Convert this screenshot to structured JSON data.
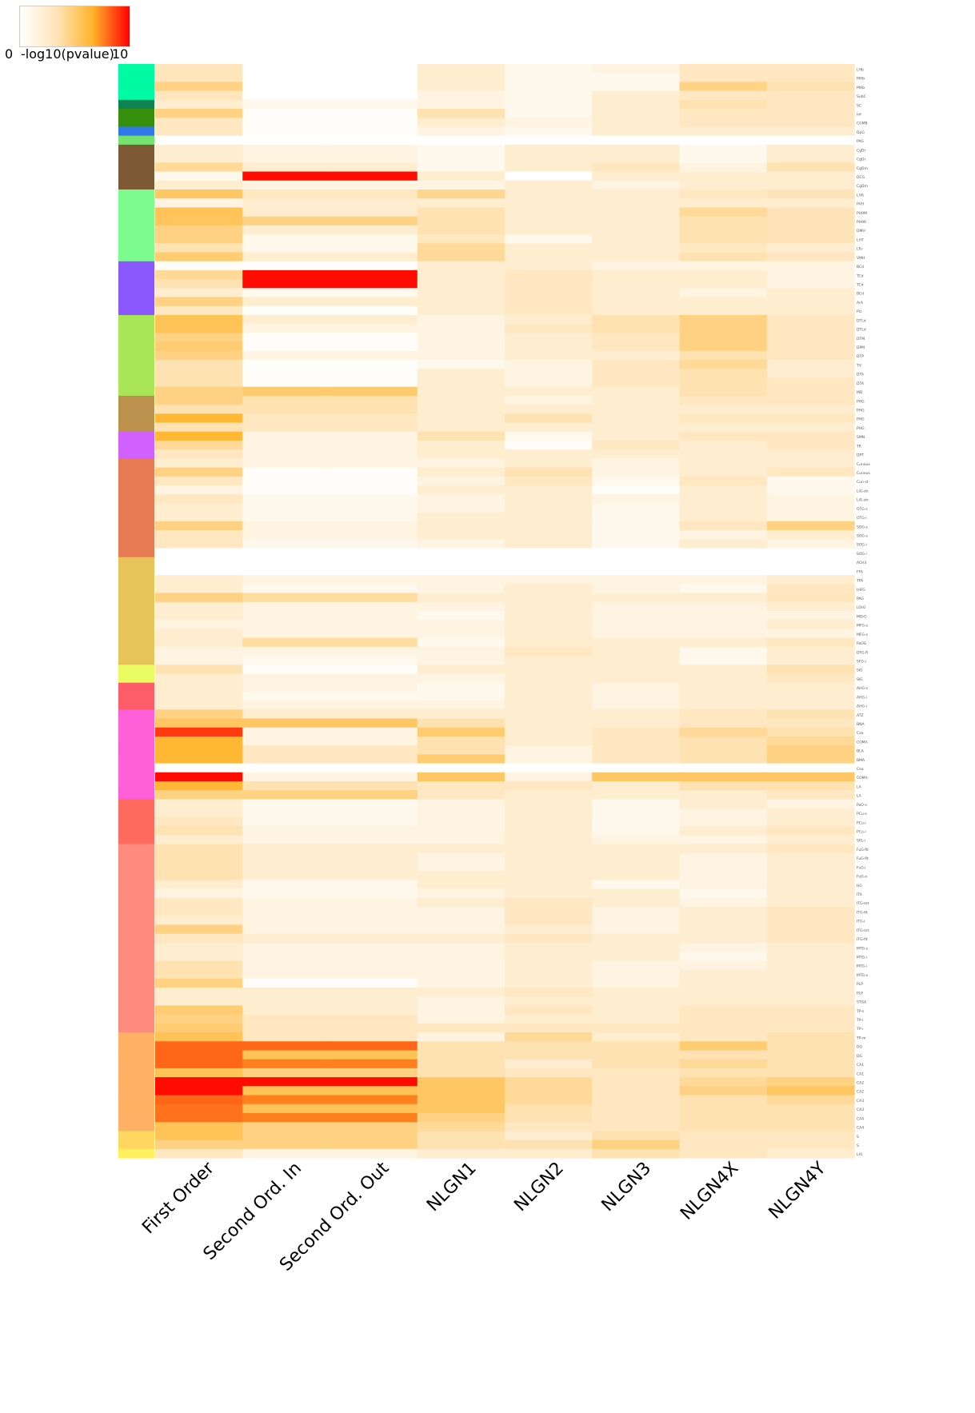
{
  "legend": {
    "min_label": "0",
    "title": "-log10(pvalue)",
    "max_label": "10",
    "colors": [
      "#ffffff",
      "#ffe4b8",
      "#ffb329",
      "#ff0000"
    ]
  },
  "chart_data": {
    "type": "heatmap",
    "columns": [
      "First Order",
      "Second Ord. In",
      "Second Ord. Out",
      "NLGN1",
      "NLGN2",
      "NLGN3",
      "NLGN4X",
      "NLGN4Y"
    ],
    "value_range": [
      0,
      10
    ],
    "group_colors": [
      "#00fba4",
      "#0f8251",
      "#368f0d",
      "#3278ea",
      "#75e26f",
      "#7d5936",
      "#7dfc8e",
      "#8a58fc",
      "#a8e658",
      "#bc914d",
      "#d160fc",
      "#e77a53",
      "#e7c459",
      "#e8fc62",
      "#fd5d69",
      "#ff5fd9",
      "#ff6a5f",
      "#ff8a7e",
      "#ffb165",
      "#ffd760",
      "#fff05c"
    ],
    "row_groups": [
      0,
      0,
      0,
      0,
      1,
      2,
      2,
      3,
      4,
      5,
      5,
      5,
      5,
      5,
      6,
      6,
      6,
      6,
      6,
      6,
      6,
      6,
      7,
      7,
      7,
      7,
      7,
      7,
      8,
      8,
      8,
      8,
      8,
      8,
      8,
      8,
      8,
      9,
      9,
      9,
      9,
      10,
      10,
      10,
      11,
      11,
      11,
      11,
      11,
      11,
      11,
      11,
      11,
      11,
      11,
      12,
      12,
      12,
      12,
      12,
      12,
      12,
      12,
      12,
      12,
      12,
      12,
      13,
      13,
      14,
      14,
      14,
      15,
      15,
      15,
      15,
      15,
      15,
      15,
      15,
      15,
      15,
      16,
      16,
      16,
      16,
      16,
      17,
      17,
      17,
      17,
      17,
      17,
      17,
      17,
      17,
      17,
      17,
      17,
      17,
      17,
      17,
      17,
      17,
      17,
      17,
      17,
      17,
      18,
      18,
      18,
      18,
      18,
      18,
      18,
      18,
      18,
      18,
      18,
      19,
      19,
      20
    ],
    "row_labels": [
      "LHb",
      "MHb",
      "MHb",
      "SubC",
      "SC",
      "Inf",
      "CGMB",
      "DpG",
      "PAG",
      "CgDr",
      "CgDr",
      "CgDm",
      "DCG",
      "CgDm",
      "LHA",
      "PVH",
      "PH9M",
      "PH9R",
      "DMH",
      "LHT",
      "LTu",
      "VMH",
      "BCd",
      "TCd",
      "TCd",
      "BCd",
      "ArA",
      "PU",
      "DTLd",
      "DTLd",
      "DTM",
      "DPM",
      "DTP",
      "TV",
      "DTA",
      "DTA",
      "MD",
      "PHG",
      "PHG",
      "PHG",
      "PHG",
      "SMN",
      "TR",
      "DPT",
      "Cuneus",
      "Cuneus",
      "Cun-st",
      "LiG-str",
      "LiG-str",
      "OTG-s",
      "OTG-i",
      "SOG-s",
      "SOG-s",
      "SOG-i",
      "SOG-i",
      "ACH3",
      "FFA",
      "TPA",
      "IHFG",
      "PAG",
      "LOrG",
      "MOrG",
      "MFG-s",
      "MFG-s",
      "PaOG",
      "DFG-R",
      "SFG-i",
      "SIG",
      "SIG",
      "AHG-s",
      "AHG-i",
      "AHG-i",
      "ATZ",
      "BNA",
      "Cxa",
      "COMA",
      "BLA",
      "BMA",
      "Cea",
      "COMA",
      "LA",
      "LA",
      "PaO-s",
      "PCu-s",
      "PCu-i",
      "PCu-i",
      "SPL-i",
      "FuG-fit",
      "FuG-fit",
      "FuG-i",
      "FuG-o",
      "HG",
      "ITA",
      "ITG-mt",
      "ITG-fit",
      "ITG-i",
      "ITG-mt",
      "ITG-fit",
      "MTG-s",
      "MTG-i",
      "MTG-i",
      "MTG-s",
      "PLP",
      "PLP",
      "STGA",
      "TP-s",
      "TP-i",
      "TP-i",
      "TP-m",
      "DG",
      "DG",
      "CA1",
      "CA1",
      "CA2",
      "CA2",
      "CA3",
      "CA3",
      "CA4",
      "CA4",
      "S",
      "S",
      "LAI"
    ],
    "values": [
      [
        3.2,
        null,
        null,
        2.2,
        0.9,
        1.4,
        2.9,
        2.9
      ],
      [
        3.2,
        null,
        null,
        2.2,
        0.9,
        0.9,
        2.9,
        2.9
      ],
      [
        4.6,
        null,
        null,
        2.2,
        0.9,
        0.9,
        4.5,
        3.5
      ],
      [
        3.2,
        null,
        null,
        1.4,
        0.9,
        2.2,
        2.9,
        2.9
      ],
      [
        2.2,
        0.9,
        0.9,
        1.4,
        0.9,
        2.2,
        3.5,
        2.9
      ],
      [
        4.6,
        0.3,
        0.3,
        3.5,
        0.9,
        2.2,
        2.9,
        2.9
      ],
      [
        2.9,
        0.3,
        0.3,
        2.2,
        1.4,
        2.2,
        2.9,
        2.9
      ],
      [
        2.9,
        0.3,
        0.3,
        1.4,
        0.9,
        2.2,
        2.2,
        2.2
      ],
      [
        0,
        0,
        0,
        0,
        0,
        0,
        0,
        0
      ],
      [
        2.2,
        1.4,
        1.4,
        0.9,
        2.2,
        2.2,
        0.9,
        2.2
      ],
      [
        2.2,
        1.4,
        1.4,
        0.9,
        2.2,
        2.2,
        0.9,
        2.2
      ],
      [
        4.1,
        2.2,
        2.2,
        0.9,
        2.2,
        2.9,
        1.4,
        3.5
      ],
      [
        0.9,
        9.8,
        9.8,
        2.2,
        0,
        2.2,
        2.2,
        2.2
      ],
      [
        2.2,
        1.4,
        1.4,
        1.4,
        2.2,
        1.4,
        2.2,
        2.2
      ],
      [
        5.3,
        2.9,
        2.9,
        4.3,
        2.2,
        2.2,
        2.9,
        3.3
      ],
      [
        1.4,
        2.2,
        2.2,
        2.2,
        2.2,
        2.2,
        2.2,
        2.2
      ],
      [
        5.6,
        2.2,
        2.2,
        3.5,
        2.2,
        2.2,
        4.1,
        3.3
      ],
      [
        5.5,
        4.6,
        4.6,
        3.5,
        2.2,
        2.2,
        3.5,
        3.3
      ],
      [
        4.6,
        2.2,
        2.2,
        3.5,
        2.2,
        2.2,
        3.5,
        3.3
      ],
      [
        4.6,
        0.9,
        0.9,
        2.9,
        0.9,
        2.2,
        3.5,
        3.3
      ],
      [
        3.5,
        0.9,
        0.9,
        4.1,
        2.2,
        2.2,
        2.9,
        2.2
      ],
      [
        5.0,
        2.2,
        2.2,
        4.1,
        2.2,
        2.2,
        3.5,
        2.9
      ],
      [
        0.3,
        0.3,
        0.3,
        2.2,
        2.2,
        1.4,
        1.4,
        1.4
      ],
      [
        4.1,
        9.8,
        9.8,
        2.2,
        2.9,
        2.2,
        2.2,
        1.4
      ],
      [
        3.5,
        9.8,
        9.8,
        2.2,
        2.9,
        2.2,
        2.2,
        1.4
      ],
      [
        2.2,
        0.9,
        0.9,
        2.2,
        2.9,
        2.2,
        1.4,
        2.2
      ],
      [
        4.6,
        2.2,
        2.2,
        2.2,
        2.9,
        2.2,
        2.2,
        2.2
      ],
      [
        2.9,
        0.3,
        0.3,
        2.2,
        2.9,
        2.2,
        2.2,
        2.2
      ],
      [
        5.6,
        2.2,
        2.2,
        1.4,
        2.2,
        3.5,
        4.6,
        2.9
      ],
      [
        5.6,
        1.4,
        1.4,
        1.4,
        2.9,
        3.5,
        4.6,
        2.9
      ],
      [
        4.6,
        0.3,
        0.3,
        1.4,
        2.2,
        2.9,
        4.6,
        2.9
      ],
      [
        5.0,
        0.3,
        0.3,
        1.4,
        2.2,
        2.9,
        4.6,
        2.9
      ],
      [
        4.6,
        1.4,
        1.4,
        1.4,
        2.2,
        2.2,
        3.5,
        2.9
      ],
      [
        3.5,
        0.3,
        0.3,
        0.9,
        1.4,
        2.9,
        4.1,
        2.2
      ],
      [
        3.5,
        0.3,
        0.3,
        2.2,
        1.4,
        2.9,
        3.5,
        2.2
      ],
      [
        3.5,
        0.3,
        0.3,
        2.2,
        1.4,
        2.9,
        3.5,
        2.9
      ],
      [
        4.6,
        5.1,
        5.1,
        2.2,
        2.2,
        2.2,
        3.5,
        2.9
      ],
      [
        4.6,
        3.5,
        3.5,
        2.2,
        1.4,
        2.2,
        2.9,
        2.9
      ],
      [
        3.5,
        3.5,
        3.5,
        2.2,
        2.2,
        2.2,
        2.2,
        2.2
      ],
      [
        6.4,
        2.9,
        2.9,
        2.2,
        3.5,
        2.2,
        2.9,
        2.9
      ],
      [
        3.5,
        2.9,
        2.9,
        2.2,
        2.2,
        2.2,
        2.2,
        2.2
      ],
      [
        6.4,
        1.4,
        1.4,
        3.5,
        0.9,
        2.2,
        2.9,
        2.9
      ],
      [
        4.1,
        1.4,
        1.4,
        2.2,
        0.3,
        2.9,
        2.2,
        2.9
      ],
      [
        2.9,
        1.4,
        1.4,
        2.2,
        2.2,
        2.2,
        2.2,
        2.2
      ],
      [
        2.2,
        1.4,
        1.4,
        1.4,
        2.2,
        1.4,
        2.2,
        2.2
      ],
      [
        4.6,
        0.3,
        0.3,
        2.2,
        3.5,
        1.4,
        2.2,
        2.9
      ],
      [
        2.9,
        0.3,
        0.3,
        1.4,
        2.9,
        0.9,
        2.9,
        0.9
      ],
      [
        1.4,
        0.3,
        0.3,
        2.2,
        2.2,
        0.3,
        2.2,
        0.9
      ],
      [
        2.9,
        0.9,
        0.9,
        1.4,
        2.2,
        1.4,
        2.2,
        1.4
      ],
      [
        2.2,
        0.9,
        0.9,
        1.4,
        2.2,
        0.9,
        2.2,
        1.4
      ],
      [
        2.2,
        0.9,
        0.9,
        2.2,
        2.2,
        0.9,
        2.2,
        1.4
      ],
      [
        4.6,
        1.4,
        1.4,
        2.2,
        2.2,
        0.9,
        2.9,
        4.6
      ],
      [
        2.9,
        1.4,
        1.4,
        2.2,
        2.2,
        0.9,
        1.4,
        2.2
      ],
      [
        2.9,
        0.9,
        0.9,
        1.4,
        2.2,
        0.9,
        2.2,
        1.4
      ],
      [
        0,
        0,
        0,
        0,
        0,
        0,
        0,
        0
      ],
      [
        0,
        0,
        0,
        0,
        0,
        0,
        0,
        0
      ],
      [
        0,
        0,
        0,
        0,
        0,
        0,
        0,
        0
      ],
      [
        2.2,
        1.4,
        1.4,
        1.4,
        1.4,
        1.4,
        1.4,
        2.2
      ],
      [
        2.2,
        0.9,
        0.9,
        1.4,
        2.2,
        1.4,
        0.9,
        2.9
      ],
      [
        4.6,
        3.9,
        3.9,
        2.2,
        2.2,
        2.2,
        2.2,
        3.2
      ],
      [
        2.2,
        1.4,
        1.4,
        1.4,
        2.2,
        1.4,
        1.4,
        2.2
      ],
      [
        2.2,
        1.4,
        1.4,
        0.9,
        2.2,
        1.4,
        1.4,
        1.4
      ],
      [
        1.4,
        1.4,
        1.4,
        1.4,
        2.2,
        1.4,
        1.4,
        2.2
      ],
      [
        2.2,
        1.4,
        1.4,
        1.4,
        2.2,
        1.4,
        1.4,
        1.4
      ],
      [
        2.2,
        3.9,
        3.9,
        0.9,
        2.2,
        2.2,
        2.2,
        2.9
      ],
      [
        1.4,
        1.4,
        1.4,
        1.4,
        2.9,
        2.2,
        0.9,
        2.2
      ],
      [
        1.4,
        0.9,
        0.9,
        1.4,
        2.2,
        2.2,
        0.9,
        2.2
      ],
      [
        3.5,
        0.3,
        0.3,
        2.2,
        2.2,
        2.2,
        2.2,
        3.5
      ],
      [
        2.2,
        1.4,
        1.4,
        1.4,
        2.2,
        2.2,
        2.2,
        2.9
      ],
      [
        2.2,
        1.4,
        1.4,
        0.9,
        2.2,
        1.4,
        2.2,
        2.2
      ],
      [
        2.2,
        0.9,
        0.9,
        0.9,
        2.2,
        1.4,
        2.2,
        2.2
      ],
      [
        2.2,
        1.4,
        1.4,
        1.4,
        2.2,
        1.4,
        2.2,
        2.2
      ],
      [
        4.6,
        2.2,
        2.2,
        2.2,
        2.2,
        2.2,
        2.9,
        3.5
      ],
      [
        5.3,
        5.3,
        5.3,
        3.5,
        2.2,
        2.2,
        2.9,
        2.9
      ],
      [
        8.9,
        1.4,
        1.4,
        5.0,
        2.2,
        2.9,
        4.1,
        3.5
      ],
      [
        6.4,
        1.4,
        1.4,
        3.5,
        2.2,
        2.9,
        3.5,
        4.1
      ],
      [
        6.4,
        2.9,
        2.9,
        3.5,
        1.4,
        2.9,
        3.5,
        4.6
      ],
      [
        6.4,
        2.9,
        2.9,
        5.0,
        1.4,
        2.9,
        3.5,
        4.6
      ],
      [
        0,
        0,
        0,
        0,
        0,
        0,
        0,
        0
      ],
      [
        9.8,
        1.4,
        1.4,
        5.3,
        1.4,
        5.3,
        5.3,
        5.3
      ],
      [
        6.4,
        3.5,
        3.5,
        2.9,
        2.9,
        2.2,
        3.5,
        3.5
      ],
      [
        4.6,
        4.6,
        4.6,
        2.9,
        2.2,
        2.2,
        2.2,
        2.9
      ],
      [
        2.2,
        0.9,
        0.9,
        1.4,
        2.2,
        0.9,
        2.2,
        1.4
      ],
      [
        2.2,
        0.9,
        0.9,
        1.4,
        2.2,
        0.9,
        1.4,
        2.2
      ],
      [
        2.9,
        0.9,
        0.9,
        1.4,
        2.2,
        0.9,
        1.4,
        2.2
      ],
      [
        3.5,
        1.4,
        1.4,
        1.4,
        2.2,
        0.9,
        2.2,
        2.9
      ],
      [
        2.2,
        1.4,
        1.4,
        1.4,
        2.2,
        1.4,
        1.4,
        2.2
      ],
      [
        3.5,
        2.2,
        2.2,
        2.2,
        2.2,
        2.2,
        2.2,
        2.9
      ],
      [
        3.5,
        2.2,
        2.2,
        1.4,
        2.2,
        2.2,
        1.4,
        2.2
      ],
      [
        3.5,
        2.2,
        2.2,
        1.4,
        2.2,
        2.2,
        1.4,
        2.2
      ],
      [
        3.5,
        2.2,
        2.2,
        2.2,
        2.2,
        2.2,
        1.4,
        2.2
      ],
      [
        2.2,
        0.9,
        0.9,
        2.2,
        2.2,
        0.9,
        1.4,
        2.2
      ],
      [
        1.4,
        0.9,
        0.9,
        1.4,
        2.2,
        2.2,
        0.9,
        2.2
      ],
      [
        2.9,
        1.4,
        1.4,
        2.2,
        2.9,
        2.2,
        1.4,
        2.2
      ],
      [
        2.9,
        1.4,
        1.4,
        1.4,
        2.9,
        1.4,
        2.2,
        2.9
      ],
      [
        2.2,
        1.4,
        1.4,
        1.4,
        2.9,
        1.4,
        2.2,
        2.9
      ],
      [
        4.6,
        1.4,
        1.4,
        1.4,
        2.2,
        1.4,
        2.2,
        2.9
      ],
      [
        2.9,
        2.2,
        2.2,
        2.2,
        2.9,
        2.2,
        2.2,
        2.9
      ],
      [
        2.2,
        1.4,
        1.4,
        1.4,
        2.2,
        2.2,
        1.4,
        2.2
      ],
      [
        2.2,
        1.4,
        1.4,
        1.4,
        2.2,
        2.2,
        0.9,
        2.2
      ],
      [
        3.5,
        1.4,
        1.4,
        1.4,
        2.2,
        1.4,
        1.4,
        2.2
      ],
      [
        3.5,
        1.4,
        1.4,
        1.4,
        2.2,
        1.4,
        2.2,
        2.2
      ],
      [
        4.6,
        0.3,
        0.3,
        1.4,
        2.2,
        1.4,
        2.2,
        2.2
      ],
      [
        2.2,
        2.2,
        2.2,
        2.2,
        2.9,
        2.2,
        2.2,
        2.2
      ],
      [
        2.2,
        2.2,
        2.2,
        1.4,
        2.2,
        2.2,
        2.2,
        2.2
      ],
      [
        5.0,
        2.2,
        2.2,
        1.4,
        2.9,
        2.2,
        2.9,
        2.9
      ],
      [
        4.6,
        2.9,
        2.9,
        1.4,
        2.2,
        2.2,
        2.9,
        2.9
      ],
      [
        5.0,
        2.9,
        2.9,
        2.9,
        2.9,
        2.9,
        2.9,
        2.9
      ],
      [
        5.6,
        2.9,
        2.9,
        1.4,
        4.1,
        2.2,
        2.9,
        3.5
      ],
      [
        8.1,
        8.1,
        8.1,
        3.5,
        3.5,
        3.5,
        5.0,
        3.5
      ],
      [
        8.1,
        5.6,
        5.6,
        3.5,
        3.5,
        3.5,
        3.5,
        3.5
      ],
      [
        8.1,
        7.6,
        7.6,
        3.5,
        2.2,
        3.5,
        4.1,
        3.5
      ],
      [
        5.6,
        4.6,
        4.6,
        3.5,
        2.9,
        2.9,
        3.5,
        3.5
      ],
      [
        9.8,
        9.8,
        9.8,
        5.3,
        4.1,
        2.9,
        4.1,
        4.6
      ],
      [
        9.8,
        5.6,
        5.6,
        5.3,
        4.1,
        2.9,
        4.6,
        5.3
      ],
      [
        8.1,
        7.6,
        7.6,
        5.3,
        4.1,
        2.9,
        3.5,
        4.1
      ],
      [
        7.9,
        5.6,
        5.6,
        5.3,
        3.5,
        2.9,
        3.5,
        3.5
      ],
      [
        7.9,
        7.6,
        7.6,
        4.6,
        3.5,
        2.9,
        3.5,
        3.5
      ],
      [
        5.6,
        4.6,
        4.6,
        4.1,
        2.9,
        2.9,
        3.5,
        3.5
      ],
      [
        5.6,
        4.6,
        4.6,
        3.5,
        2.2,
        3.5,
        2.9,
        2.9
      ],
      [
        4.6,
        4.6,
        4.6,
        3.5,
        3.5,
        4.6,
        2.9,
        2.9
      ],
      [
        2.9,
        1.4,
        1.4,
        2.2,
        2.2,
        3.5,
        2.9,
        2.2
      ]
    ]
  }
}
